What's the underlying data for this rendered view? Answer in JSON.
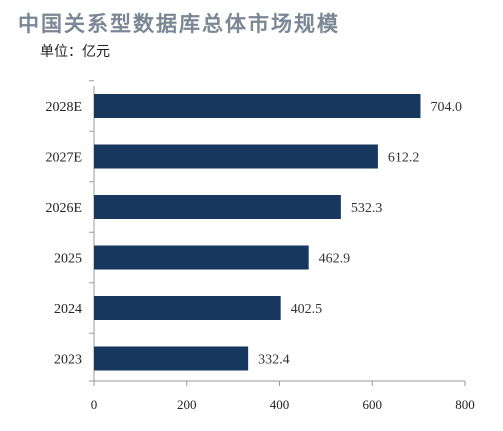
{
  "chart_data": {
    "type": "bar",
    "orientation": "horizontal",
    "title": "中国关系型数据库总体市场规模",
    "unit_label": "单位：亿元",
    "categories": [
      "2028E",
      "2027E",
      "2026E",
      "2025",
      "2024",
      "2023"
    ],
    "values": [
      704.0,
      612.2,
      532.3,
      462.9,
      402.5,
      332.4
    ],
    "value_labels": [
      "704.0",
      "612.2",
      "532.3",
      "462.9",
      "402.5",
      "332.4"
    ],
    "xlim": [
      0,
      800
    ],
    "x_ticks": [
      "0",
      "200",
      "400",
      "600",
      "800"
    ],
    "bar_color": "#17375e",
    "grid": false,
    "legend": "none"
  }
}
